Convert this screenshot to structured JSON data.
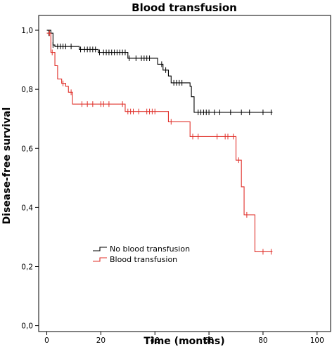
{
  "chart_data": {
    "type": "line",
    "title": "Blood transfusion",
    "xlabel": "Time (months)",
    "ylabel": "Disease-free survival",
    "xlim": [
      -3,
      105
    ],
    "ylim": [
      -0.02,
      1.05
    ],
    "x_ticks": [
      0,
      20,
      40,
      60,
      80,
      100
    ],
    "y_ticks": [
      0.0,
      0.2,
      0.4,
      0.6,
      0.8,
      1.0
    ],
    "x_tick_labels": [
      "0",
      "20",
      "40",
      "60",
      "80",
      "100"
    ],
    "y_tick_labels": [
      "0,0",
      "0,2",
      "0,4",
      "0,6",
      "0,8",
      "1,0"
    ],
    "grid": false,
    "legend": "bottom-left",
    "series": [
      {
        "name": "No blood transfusion",
        "color": "#000000",
        "steps": [
          [
            0,
            1.0
          ],
          [
            1.5,
            0.99
          ],
          [
            2.3,
            0.95
          ],
          [
            3.0,
            0.945
          ],
          [
            12,
            0.935
          ],
          [
            19,
            0.925
          ],
          [
            30,
            0.905
          ],
          [
            41,
            0.885
          ],
          [
            43,
            0.865
          ],
          [
            45,
            0.845
          ],
          [
            46,
            0.822
          ],
          [
            53,
            0.81
          ],
          [
            53.5,
            0.775
          ],
          [
            54.5,
            0.722
          ],
          [
            83.5,
            0.722
          ]
        ],
        "censored": [
          [
            0.8,
            0.99
          ],
          [
            2.3,
            0.95
          ],
          [
            4,
            0.945
          ],
          [
            5,
            0.945
          ],
          [
            6,
            0.945
          ],
          [
            7,
            0.945
          ],
          [
            9,
            0.945
          ],
          [
            12.5,
            0.935
          ],
          [
            14,
            0.935
          ],
          [
            15,
            0.935
          ],
          [
            16,
            0.935
          ],
          [
            17,
            0.935
          ],
          [
            18,
            0.935
          ],
          [
            19.5,
            0.925
          ],
          [
            21,
            0.925
          ],
          [
            22,
            0.925
          ],
          [
            23,
            0.925
          ],
          [
            24,
            0.925
          ],
          [
            25,
            0.925
          ],
          [
            26,
            0.925
          ],
          [
            27,
            0.925
          ],
          [
            28,
            0.925
          ],
          [
            29,
            0.925
          ],
          [
            30.5,
            0.905
          ],
          [
            33,
            0.905
          ],
          [
            35,
            0.905
          ],
          [
            36,
            0.905
          ],
          [
            37,
            0.905
          ],
          [
            38,
            0.905
          ],
          [
            42.5,
            0.885
          ],
          [
            44,
            0.865
          ],
          [
            47,
            0.822
          ],
          [
            48,
            0.822
          ],
          [
            49,
            0.822
          ],
          [
            50,
            0.822
          ],
          [
            56,
            0.722
          ],
          [
            57,
            0.722
          ],
          [
            58,
            0.722
          ],
          [
            59,
            0.722
          ],
          [
            60,
            0.722
          ],
          [
            62,
            0.722
          ],
          [
            64,
            0.722
          ],
          [
            68,
            0.722
          ],
          [
            72,
            0.722
          ],
          [
            75,
            0.722
          ],
          [
            80,
            0.722
          ],
          [
            83,
            0.722
          ]
        ]
      },
      {
        "name": "Blood transfusion",
        "color": "#e0302a",
        "steps": [
          [
            0,
            0.99
          ],
          [
            1.5,
            0.925
          ],
          [
            3,
            0.88
          ],
          [
            4,
            0.835
          ],
          [
            5.5,
            0.82
          ],
          [
            7,
            0.81
          ],
          [
            8,
            0.79
          ],
          [
            9.5,
            0.75
          ],
          [
            29,
            0.725
          ],
          [
            45,
            0.69
          ],
          [
            53,
            0.64
          ],
          [
            70,
            0.56
          ],
          [
            72,
            0.47
          ],
          [
            73,
            0.375
          ],
          [
            77,
            0.25
          ],
          [
            83.5,
            0.25
          ]
        ],
        "censored": [
          [
            1,
            0.99
          ],
          [
            2,
            0.925
          ],
          [
            6,
            0.82
          ],
          [
            9,
            0.79
          ],
          [
            13,
            0.75
          ],
          [
            15,
            0.75
          ],
          [
            17,
            0.75
          ],
          [
            20,
            0.75
          ],
          [
            21,
            0.75
          ],
          [
            23,
            0.75
          ],
          [
            28,
            0.75
          ],
          [
            30,
            0.725
          ],
          [
            31,
            0.725
          ],
          [
            32,
            0.725
          ],
          [
            34,
            0.725
          ],
          [
            37,
            0.725
          ],
          [
            38,
            0.725
          ],
          [
            39,
            0.725
          ],
          [
            40,
            0.725
          ],
          [
            46,
            0.69
          ],
          [
            54,
            0.64
          ],
          [
            56,
            0.64
          ],
          [
            63,
            0.64
          ],
          [
            66,
            0.64
          ],
          [
            67,
            0.64
          ],
          [
            69,
            0.64
          ],
          [
            71,
            0.56
          ],
          [
            74,
            0.375
          ],
          [
            80,
            0.25
          ],
          [
            83,
            0.25
          ]
        ]
      }
    ]
  }
}
